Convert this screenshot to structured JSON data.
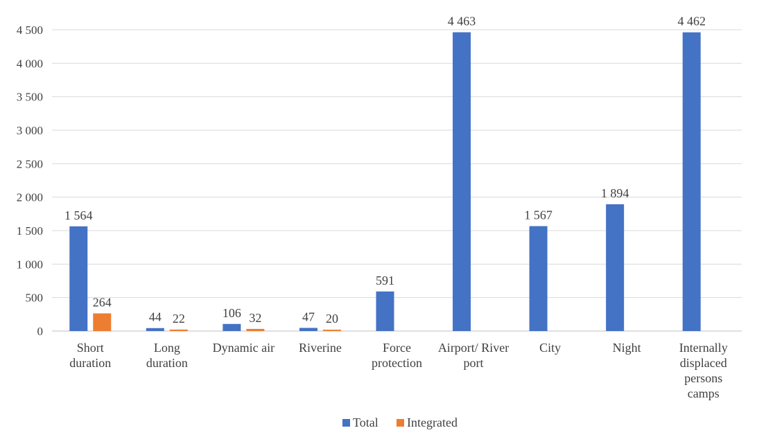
{
  "chart_data": {
    "type": "bar",
    "categories": [
      [
        "Short",
        "duration"
      ],
      [
        "Long",
        "duration"
      ],
      [
        "Dynamic air"
      ],
      [
        "Riverine"
      ],
      [
        "Force",
        "protection"
      ],
      [
        "Airport/ River",
        "port"
      ],
      [
        "City"
      ],
      [
        "Night"
      ],
      [
        "Internally",
        "displaced",
        "persons",
        "camps"
      ]
    ],
    "series": [
      {
        "name": "Total",
        "color": "#4472C4",
        "values": [
          1564,
          44,
          106,
          47,
          591,
          4463,
          1567,
          1894,
          4462
        ],
        "labels": [
          "1 564",
          "44",
          "106",
          "47",
          "591",
          "4 463",
          "1 567",
          "1 894",
          "4 462"
        ]
      },
      {
        "name": "Integrated",
        "color": "#ED7D31",
        "values": [
          264,
          22,
          32,
          20,
          null,
          null,
          null,
          null,
          null
        ],
        "labels": [
          "264",
          "22",
          "32",
          "20",
          null,
          null,
          null,
          null,
          null
        ]
      }
    ],
    "ylim": [
      0,
      4500
    ],
    "yticks": [
      0,
      500,
      1000,
      1500,
      2000,
      2500,
      3000,
      3500,
      4000,
      4500
    ],
    "ytick_labels": [
      "0",
      "500",
      "1 000",
      "1 500",
      "2 000",
      "2 500",
      "3 000",
      "3 500",
      "4 000",
      "4 500"
    ],
    "grid": true,
    "legend_position": "bottom"
  }
}
